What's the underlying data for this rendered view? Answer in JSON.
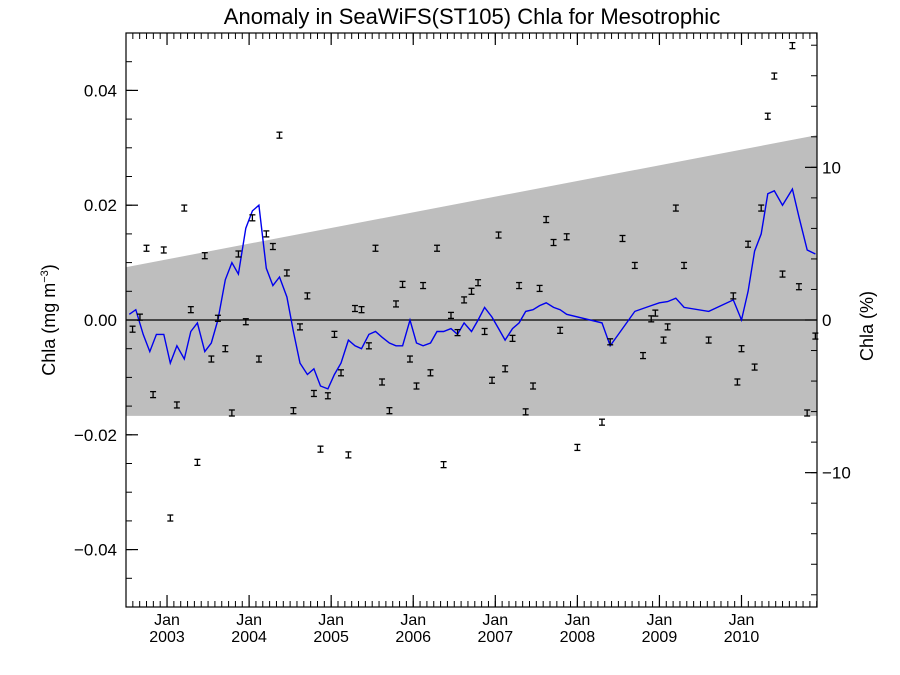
{
  "chart_data": {
    "type": "scatter",
    "title": "Anomaly in SeaWiFS(ST105) Chla for Mesotrophic",
    "ylabel_left": "Chla (mg m",
    "ylabel_left_exp": "−3",
    "ylabel_left_close": ")",
    "ylabel_right": "Chla (%)",
    "xlim": [
      2002.5,
      2010.92
    ],
    "ylim": [
      -0.05,
      0.05
    ],
    "ylim_right": [
      -18.8,
      18.8
    ],
    "y_ticks": [
      -0.04,
      -0.02,
      0.0,
      0.02,
      0.04
    ],
    "y_tick_labels": [
      "−0.04",
      "−0.02",
      "0.00",
      "0.02",
      "0.04"
    ],
    "y_right_ticks": [
      -10,
      0,
      10
    ],
    "y_right_tick_labels": [
      "−10",
      "0",
      "10"
    ],
    "x_ticks": [
      {
        "value": 2003.0,
        "month": "Jan",
        "year": "2003"
      },
      {
        "value": 2004.0,
        "month": "Jan",
        "year": "2004"
      },
      {
        "value": 2005.0,
        "month": "Jan",
        "year": "2005"
      },
      {
        "value": 2006.0,
        "month": "Jan",
        "year": "2006"
      },
      {
        "value": 2007.0,
        "month": "Jan",
        "year": "2007"
      },
      {
        "value": 2008.0,
        "month": "Jan",
        "year": "2008"
      },
      {
        "value": 2009.0,
        "month": "Jan",
        "year": "2009"
      },
      {
        "value": 2010.0,
        "month": "Jan",
        "year": "2010"
      }
    ],
    "grid": false,
    "shaded_band": {
      "x": [
        2002.5,
        2010.92
      ],
      "upper": [
        0.0092,
        0.0322
      ],
      "lower": [
        -0.0167,
        -0.0167
      ],
      "color": "#bebebe"
    },
    "colors": {
      "line": "#0000ee",
      "points": "#000000",
      "band": "#bebebe"
    },
    "line_series": {
      "x": [
        2002.54,
        2002.62,
        2002.71,
        2002.79,
        2002.87,
        2002.96,
        2003.04,
        2003.12,
        2003.21,
        2003.29,
        2003.37,
        2003.46,
        2003.54,
        2003.62,
        2003.71,
        2003.79,
        2003.87,
        2003.96,
        2004.04,
        2004.12,
        2004.21,
        2004.29,
        2004.37,
        2004.46,
        2004.54,
        2004.62,
        2004.71,
        2004.79,
        2004.87,
        2004.96,
        2005.04,
        2005.12,
        2005.21,
        2005.29,
        2005.37,
        2005.46,
        2005.54,
        2005.62,
        2005.71,
        2005.79,
        2005.87,
        2005.96,
        2006.04,
        2006.12,
        2006.21,
        2006.29,
        2006.37,
        2006.46,
        2006.54,
        2006.62,
        2006.71,
        2006.79,
        2006.87,
        2006.96,
        2007.04,
        2007.12,
        2007.21,
        2007.29,
        2007.37,
        2007.46,
        2007.54,
        2007.62,
        2007.71,
        2007.79,
        2007.87,
        2008.3,
        2008.4,
        2008.55,
        2008.7,
        2008.8,
        2008.9,
        2009.0,
        2009.1,
        2009.2,
        2009.3,
        2009.6,
        2009.9,
        2010.0,
        2010.08,
        2010.16,
        2010.24,
        2010.32,
        2010.4,
        2010.5,
        2010.62,
        2010.7,
        2010.8,
        2010.9
      ],
      "y": [
        0.001,
        0.0018,
        -0.0025,
        -0.0055,
        -0.0025,
        -0.0025,
        -0.0075,
        -0.0045,
        -0.0068,
        -0.002,
        -0.0005,
        -0.0055,
        -0.004,
        0.0,
        0.007,
        0.01,
        0.008,
        0.016,
        0.019,
        0.02,
        0.009,
        0.006,
        0.0075,
        0.004,
        -0.002,
        -0.0075,
        -0.0095,
        -0.0085,
        -0.0115,
        -0.012,
        -0.0095,
        -0.0075,
        -0.0035,
        -0.0045,
        -0.005,
        -0.0025,
        -0.002,
        -0.003,
        -0.004,
        -0.0045,
        -0.0045,
        0.0,
        -0.004,
        -0.0045,
        -0.004,
        -0.002,
        -0.002,
        -0.0015,
        -0.0025,
        -0.0005,
        -0.002,
        0.0,
        0.0022,
        0.0005,
        -0.0015,
        -0.0035,
        -0.0015,
        -0.0005,
        0.0015,
        0.0018,
        0.0025,
        0.003,
        0.0022,
        0.0018,
        0.001,
        -0.0005,
        -0.0045,
        -0.0015,
        0.0015,
        0.002,
        0.0025,
        0.003,
        0.0032,
        0.0038,
        0.0022,
        0.0015,
        0.0035,
        0.0,
        0.005,
        0.012,
        0.015,
        0.022,
        0.0225,
        0.02,
        0.0228,
        0.018,
        0.0122,
        0.0115
      ]
    },
    "points": {
      "x": [
        2002.58,
        2002.67,
        2002.75,
        2002.83,
        2002.96,
        2003.04,
        2003.12,
        2003.21,
        2003.29,
        2003.37,
        2003.46,
        2003.54,
        2003.62,
        2003.71,
        2003.79,
        2003.87,
        2003.96,
        2004.04,
        2004.12,
        2004.21,
        2004.29,
        2004.37,
        2004.46,
        2004.54,
        2004.62,
        2004.71,
        2004.79,
        2004.87,
        2004.96,
        2005.04,
        2005.12,
        2005.21,
        2005.29,
        2005.37,
        2005.46,
        2005.54,
        2005.62,
        2005.71,
        2005.79,
        2005.87,
        2005.96,
        2006.04,
        2006.12,
        2006.21,
        2006.29,
        2006.37,
        2006.46,
        2006.54,
        2006.62,
        2006.71,
        2006.79,
        2006.87,
        2006.96,
        2007.04,
        2007.12,
        2007.21,
        2007.29,
        2007.37,
        2007.46,
        2007.54,
        2007.62,
        2007.71,
        2007.79,
        2007.87,
        2008.0,
        2008.3,
        2008.4,
        2008.55,
        2008.7,
        2008.8,
        2008.9,
        2008.95,
        2009.05,
        2009.1,
        2009.2,
        2009.3,
        2009.6,
        2009.9,
        2009.95,
        2010.0,
        2010.08,
        2010.16,
        2010.24,
        2010.32,
        2010.4,
        2010.5,
        2010.62,
        2010.7,
        2010.8,
        2010.9
      ],
      "y": [
        -0.0016,
        0.0005,
        0.0125,
        -0.013,
        0.0122,
        -0.0345,
        -0.0148,
        0.0195,
        0.0018,
        -0.0248,
        0.0112,
        -0.0068,
        0.0003,
        -0.005,
        -0.0162,
        0.0115,
        -0.0003,
        0.0178,
        -0.0068,
        0.015,
        0.0128,
        0.0322,
        0.0082,
        -0.0158,
        -0.0012,
        0.0042,
        -0.0128,
        -0.0225,
        -0.0132,
        -0.0025,
        -0.0092,
        -0.0235,
        0.002,
        0.0018,
        -0.0045,
        0.0125,
        -0.0108,
        -0.0158,
        0.0028,
        0.0062,
        -0.0068,
        -0.0115,
        0.006,
        -0.0092,
        0.0125,
        -0.0252,
        0.0008,
        -0.0022,
        0.0035,
        0.005,
        0.0065,
        -0.002,
        -0.0105,
        0.0148,
        -0.0085,
        -0.0032,
        0.006,
        -0.016,
        -0.0115,
        0.0055,
        0.0175,
        0.0135,
        -0.0018,
        0.0145,
        -0.0222,
        -0.0178,
        -0.0038,
        0.0142,
        0.0095,
        -0.0062,
        0.0002,
        0.0012,
        -0.0035,
        -0.0012,
        0.0195,
        0.0095,
        -0.0035,
        0.0042,
        -0.0108,
        -0.005,
        0.0132,
        -0.0082,
        0.0195,
        0.0355,
        0.0425,
        0.008,
        0.0478,
        0.0058,
        -0.0162,
        -0.0028
      ]
    }
  }
}
